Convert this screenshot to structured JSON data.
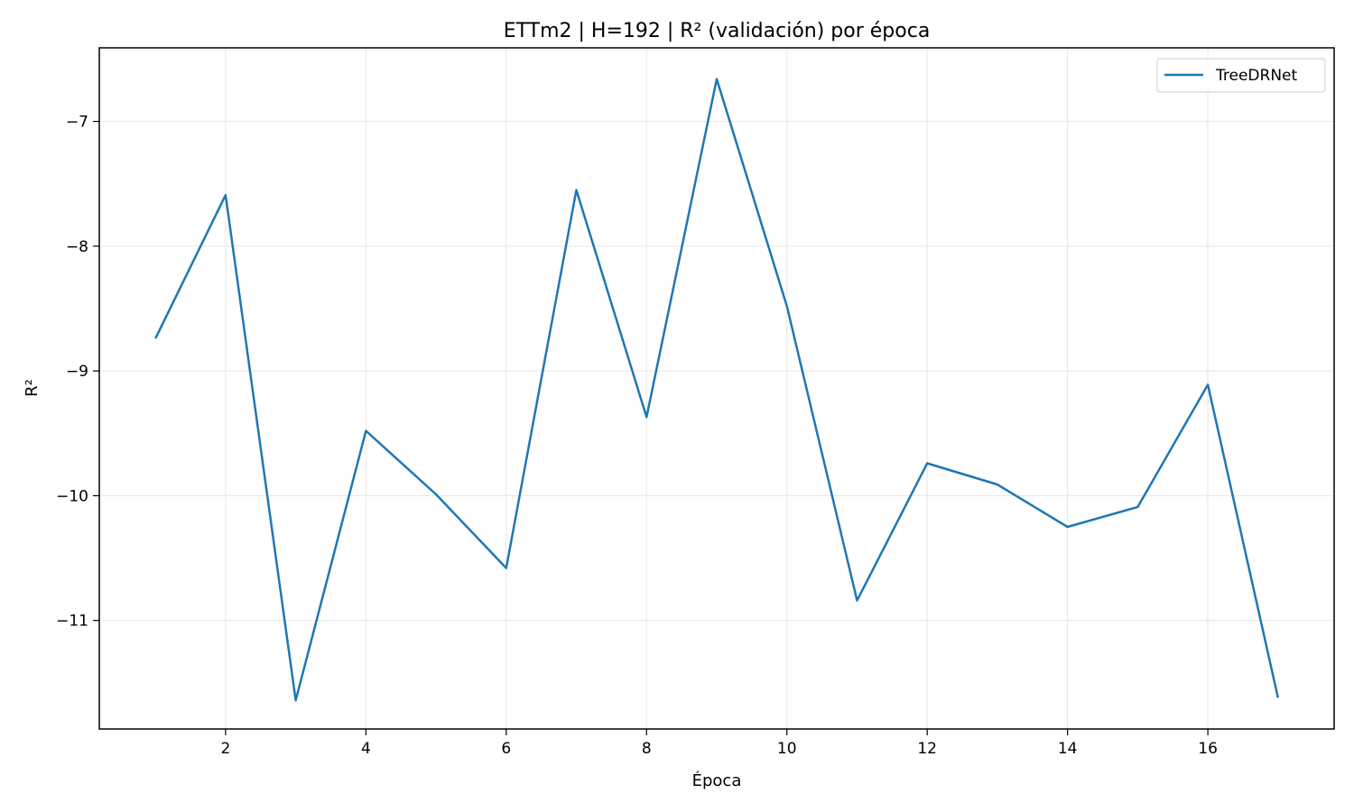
{
  "chart_data": {
    "type": "line",
    "title": "ETTm2 | H=192 | R² (validación) por época",
    "xlabel": "Época",
    "ylabel": "R²",
    "xlim": [
      0.2,
      17.8
    ],
    "ylim": [
      -11.87,
      -6.41
    ],
    "xticks": [
      2,
      4,
      6,
      8,
      10,
      12,
      14,
      16
    ],
    "yticks": [
      -11,
      -10,
      -9,
      -8,
      -7
    ],
    "grid": true,
    "legend_position": "top-right",
    "colors": {
      "series": "#1f77b4",
      "grid": "#e6e6e6",
      "axis": "#000000"
    },
    "series": [
      {
        "name": "TreeDRNet",
        "x": [
          1,
          2,
          3,
          4,
          5,
          6,
          7,
          8,
          9,
          10,
          11,
          12,
          13,
          14,
          15,
          16,
          17
        ],
        "y": [
          -8.74,
          -7.59,
          -11.64,
          -9.48,
          -9.99,
          -10.58,
          -7.55,
          -9.37,
          -6.66,
          -8.48,
          -10.84,
          -9.74,
          -9.91,
          -10.25,
          -10.09,
          -9.11,
          -11.62
        ]
      }
    ]
  }
}
